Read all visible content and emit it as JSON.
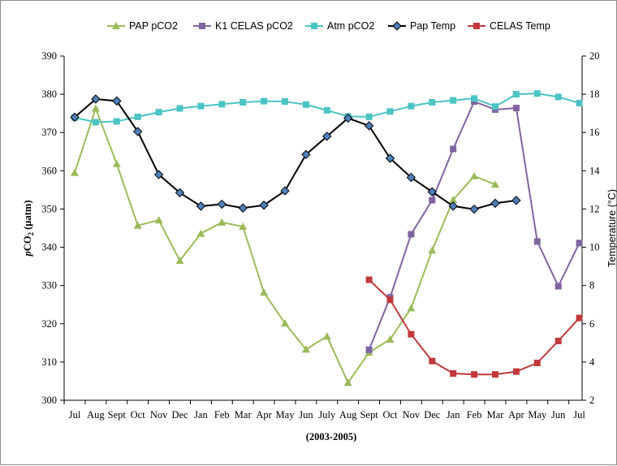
{
  "chart_data": {
    "type": "line",
    "title": "",
    "xlabel": "(2003-2005)",
    "ylabel_left_prefix": "p",
    "ylabel_left_main": "CO",
    "ylabel_left_sub": "2",
    "ylabel_left_suffix": " (µatm)",
    "ylabel_right": "Temperature (°C)",
    "ylim_left": [
      300,
      390
    ],
    "ylim_right": [
      2,
      20
    ],
    "yticks_left": [
      "300",
      "310",
      "320",
      "330",
      "340",
      "350",
      "360",
      "370",
      "380",
      "390"
    ],
    "yticks_right": [
      "2",
      "4",
      "6",
      "8",
      "10",
      "12",
      "14",
      "16",
      "18",
      "20"
    ],
    "categories": [
      "Jul",
      "Aug",
      "Sept",
      "Oct",
      "Nov",
      "Dec",
      "Jan",
      "Feb",
      "Mar",
      "Apr",
      "May",
      "Jun",
      "July",
      "Aug",
      "Sept",
      "Oct",
      "Nov",
      "Dec",
      "Jan",
      "Feb",
      "Mar",
      "Apr",
      "May",
      "Jun",
      "Jul"
    ],
    "grid": false,
    "legend_position": "top",
    "series": [
      {
        "name": "PAP pCO2",
        "axis": "left",
        "color": "#9bbb59",
        "marker": "triangle",
        "values": [
          359.5,
          376.3,
          361.8,
          345.7,
          347.1,
          336.5,
          343.6,
          346.5,
          345.4,
          328.2,
          320.1,
          313.3,
          316.7,
          304.6,
          312.5,
          315.9,
          324.1,
          339.2,
          352.4,
          358.6,
          356.4,
          null,
          null,
          null,
          null
        ]
      },
      {
        "name": "K1 CELAS pCO2",
        "axis": "left",
        "color": "#8064a2",
        "marker": "square",
        "values": [
          null,
          null,
          null,
          null,
          null,
          null,
          null,
          null,
          null,
          null,
          null,
          null,
          null,
          null,
          313.2,
          326.9,
          343.4,
          352.3,
          365.7,
          378.1,
          376.0,
          376.4,
          341.5,
          329.8,
          341.1
        ]
      },
      {
        "name": "Atm pCO2",
        "axis": "left",
        "color": "#4bc4c4",
        "marker": "square",
        "values": [
          373.9,
          372.7,
          372.9,
          374.1,
          375.3,
          376.3,
          376.9,
          377.4,
          377.9,
          378.2,
          378.1,
          377.3,
          375.8,
          374.2,
          374.1,
          375.5,
          376.9,
          377.9,
          378.4,
          378.9,
          376.8,
          380.0,
          380.2,
          379.3,
          377.7
        ]
      },
      {
        "name": "Pap Temp",
        "axis": "right",
        "color": "#000000",
        "marker": "diamond",
        "values": [
          16.8,
          17.75,
          17.65,
          16.05,
          13.8,
          12.85,
          12.15,
          12.25,
          12.05,
          12.2,
          12.95,
          14.85,
          15.8,
          16.75,
          16.35,
          14.65,
          13.65,
          12.9,
          12.15,
          11.99,
          12.3,
          12.45,
          null,
          null,
          null
        ]
      },
      {
        "name": "CELAS Temp",
        "axis": "right",
        "color": "#c0393b",
        "marker": "square",
        "values": [
          null,
          null,
          null,
          null,
          null,
          null,
          null,
          null,
          null,
          null,
          null,
          null,
          null,
          null,
          8.3,
          7.25,
          5.45,
          4.05,
          3.4,
          3.35,
          3.35,
          3.5,
          3.95,
          5.1,
          6.3
        ]
      }
    ]
  }
}
